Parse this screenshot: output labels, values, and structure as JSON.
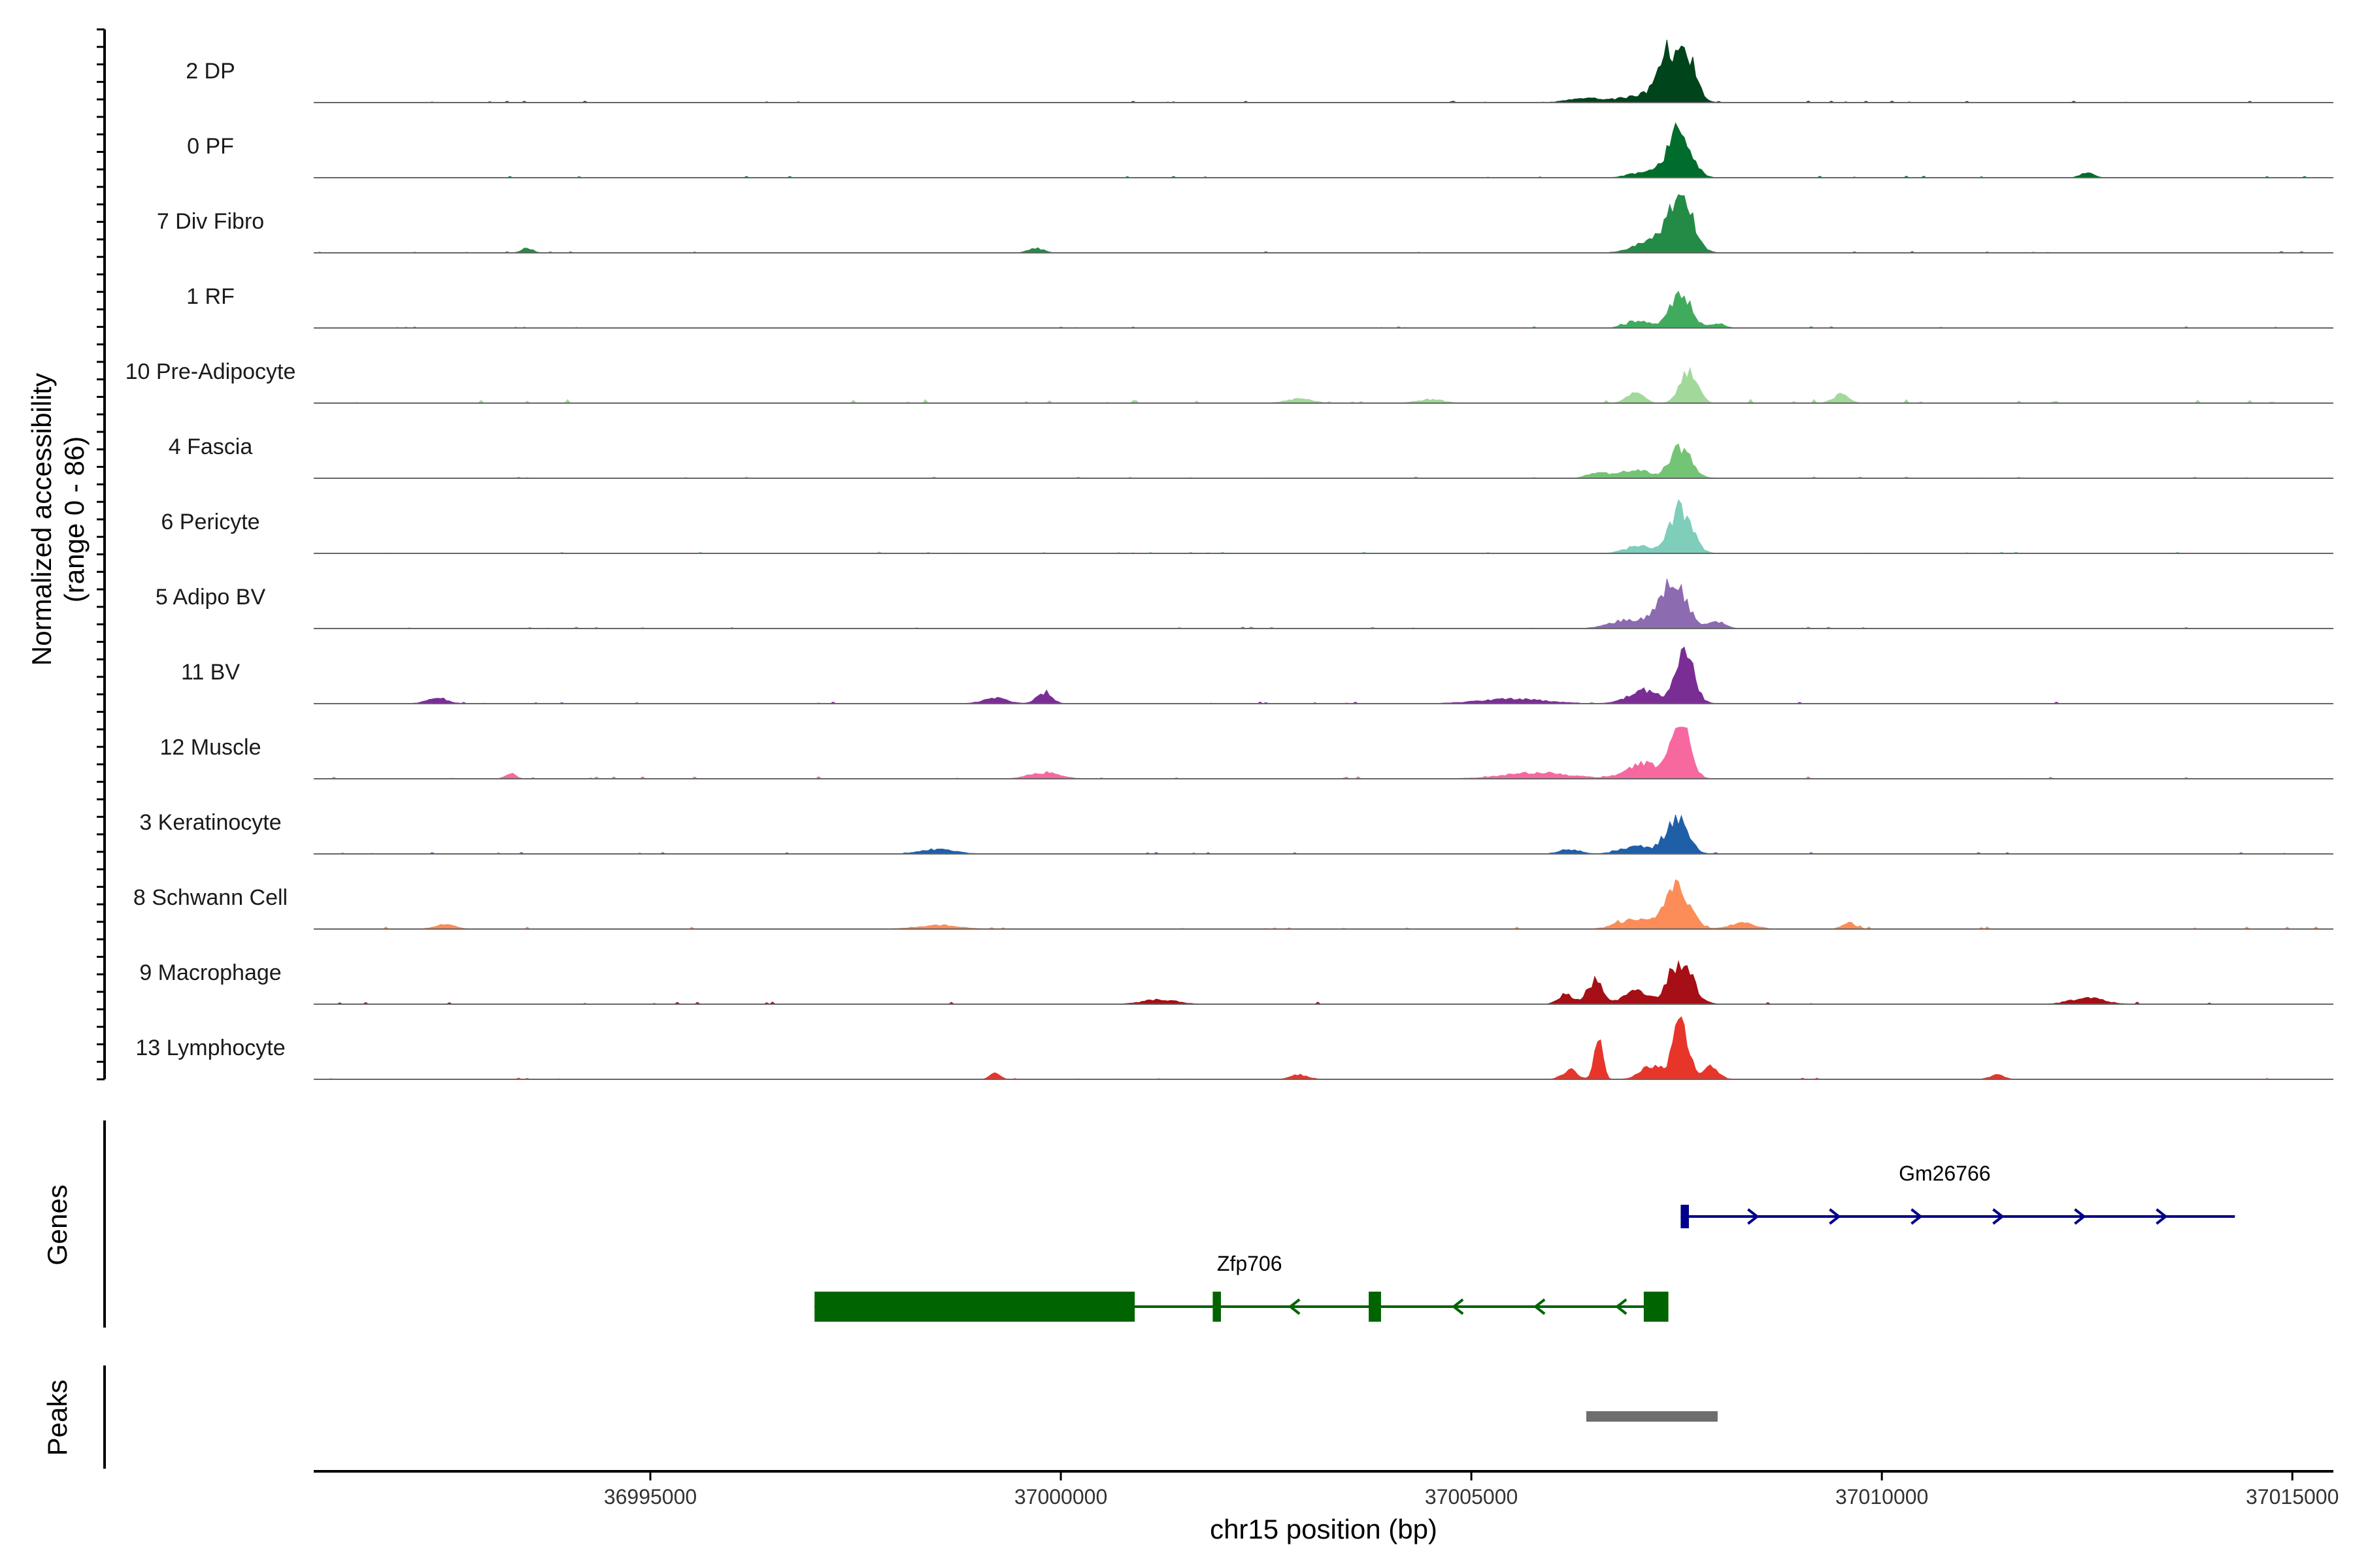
{
  "chart_data": {
    "type": "area",
    "title": "",
    "ylabel_line1": "Normalized accessibility",
    "ylabel_line2": "(range 0 - 86)",
    "y_range": [
      0,
      86
    ],
    "xlabel": "chr15 position (bp)",
    "x_range": [
      36990900,
      37015500
    ],
    "x_ticks": [
      36995000,
      37000000,
      37005000,
      37010000,
      37015000
    ],
    "x_tick_labels": [
      "36995000",
      "37000000",
      "37005000",
      "37010000",
      "37015000"
    ],
    "tracks": [
      {
        "name": "2 DP",
        "color": "#00441b",
        "peaks": [
          [
            37007350,
            50,
            90
          ],
          [
            37007600,
            70,
            120
          ],
          [
            37007150,
            12,
            250
          ],
          [
            37006400,
            6,
            200
          ]
        ],
        "noise": 2
      },
      {
        "name": "0 PF",
        "color": "#006d2c",
        "peaks": [
          [
            37007550,
            60,
            130
          ],
          [
            37007250,
            12,
            220
          ],
          [
            37012500,
            6,
            80
          ]
        ],
        "noise": 2
      },
      {
        "name": "7 Div Fibro",
        "color": "#238b45",
        "peaks": [
          [
            37007550,
            76,
            140
          ],
          [
            37007200,
            18,
            200
          ],
          [
            36993500,
            6,
            70
          ],
          [
            36999700,
            6,
            90
          ]
        ],
        "noise": 2
      },
      {
        "name": "1 RF",
        "color": "#41ab5d",
        "peaks": [
          [
            37007550,
            48,
            120
          ],
          [
            37007050,
            10,
            150
          ],
          [
            37008000,
            6,
            80
          ]
        ],
        "noise": 2
      },
      {
        "name": "10 Pre-Adipocyte",
        "color": "#a1d99b",
        "peaks": [
          [
            37007650,
            46,
            100
          ],
          [
            37007000,
            14,
            100
          ],
          [
            37009500,
            12,
            90
          ],
          [
            37002900,
            6,
            150
          ],
          [
            37004500,
            5,
            150
          ]
        ],
        "noise": 5
      },
      {
        "name": "4 Fascia",
        "color": "#74c476",
        "peaks": [
          [
            37007550,
            40,
            130
          ],
          [
            37007000,
            12,
            150
          ],
          [
            37006550,
            8,
            120
          ]
        ],
        "noise": 2
      },
      {
        "name": "6 Pericyte",
        "color": "#7fcdbb",
        "peaks": [
          [
            37007550,
            60,
            130
          ],
          [
            37007050,
            10,
            160
          ]
        ],
        "noise": 2
      },
      {
        "name": "5 Adipo BV",
        "color": "#8c6bb1",
        "peaks": [
          [
            37007450,
            64,
            160
          ],
          [
            37006900,
            12,
            200
          ],
          [
            37008000,
            8,
            100
          ]
        ],
        "noise": 2
      },
      {
        "name": "11 BV",
        "color": "#7a2e95",
        "peaks": [
          [
            37007600,
            66,
            110
          ],
          [
            37007100,
            18,
            180
          ],
          [
            36999800,
            14,
            90
          ],
          [
            36992400,
            8,
            120
          ],
          [
            36999200,
            7,
            150
          ],
          [
            37005500,
            6,
            400
          ]
        ],
        "noise": 3
      },
      {
        "name": "12 Muscle",
        "color": "#f768a1",
        "peaks": [
          [
            37007550,
            76,
            110
          ],
          [
            37007100,
            20,
            200
          ],
          [
            36993300,
            8,
            60
          ],
          [
            36999800,
            8,
            180
          ],
          [
            37005800,
            8,
            400
          ]
        ],
        "noise": 3
      },
      {
        "name": "3 Keratinocyte",
        "color": "#1f5fa8",
        "peaks": [
          [
            37007500,
            48,
            130
          ],
          [
            37007000,
            10,
            180
          ],
          [
            36998500,
            6,
            200
          ],
          [
            37006200,
            6,
            120
          ]
        ],
        "noise": 2
      },
      {
        "name": "8 Schwann Cell",
        "color": "#fc8d59",
        "peaks": [
          [
            37007500,
            56,
            150
          ],
          [
            37007000,
            14,
            200
          ],
          [
            37008300,
            8,
            150
          ],
          [
            37009600,
            8,
            80
          ],
          [
            36992500,
            6,
            120
          ],
          [
            36998500,
            5,
            250
          ]
        ],
        "noise": 3
      },
      {
        "name": "9 Macrophage",
        "color": "#a50f15",
        "peaks": [
          [
            37007550,
            58,
            140
          ],
          [
            37006500,
            30,
            90
          ],
          [
            37006150,
            14,
            90
          ],
          [
            37007000,
            16,
            150
          ],
          [
            37012500,
            8,
            200
          ],
          [
            37001200,
            6,
            200
          ]
        ],
        "noise": 3
      },
      {
        "name": "13 Lymphocyte",
        "color": "#e8352a",
        "peaks": [
          [
            37007550,
            76,
            90
          ],
          [
            37006550,
            50,
            50
          ],
          [
            37007200,
            18,
            130
          ],
          [
            37007900,
            16,
            100
          ],
          [
            37006200,
            12,
            90
          ],
          [
            36999200,
            8,
            60
          ],
          [
            37002900,
            6,
            100
          ],
          [
            37011400,
            6,
            80
          ]
        ],
        "noise": 2
      }
    ],
    "genes_label": "Genes",
    "genes": [
      {
        "name": "Gm26766",
        "strand": "+",
        "color": "#00008b",
        "start": 37007550,
        "end": 37014300,
        "exons": [
          [
            37007550,
            37007650
          ]
        ]
      },
      {
        "name": "Zfp706",
        "strand": "-",
        "color": "#006400",
        "start": 36997000,
        "end": 37007400,
        "exons": [
          [
            36997000,
            37000900
          ],
          [
            37001850,
            37001950
          ],
          [
            37003750,
            37003900
          ],
          [
            37007100,
            37007400
          ]
        ]
      }
    ],
    "peaks_label": "Peaks",
    "peak_regions": [
      [
        37006400,
        37008000
      ]
    ]
  }
}
